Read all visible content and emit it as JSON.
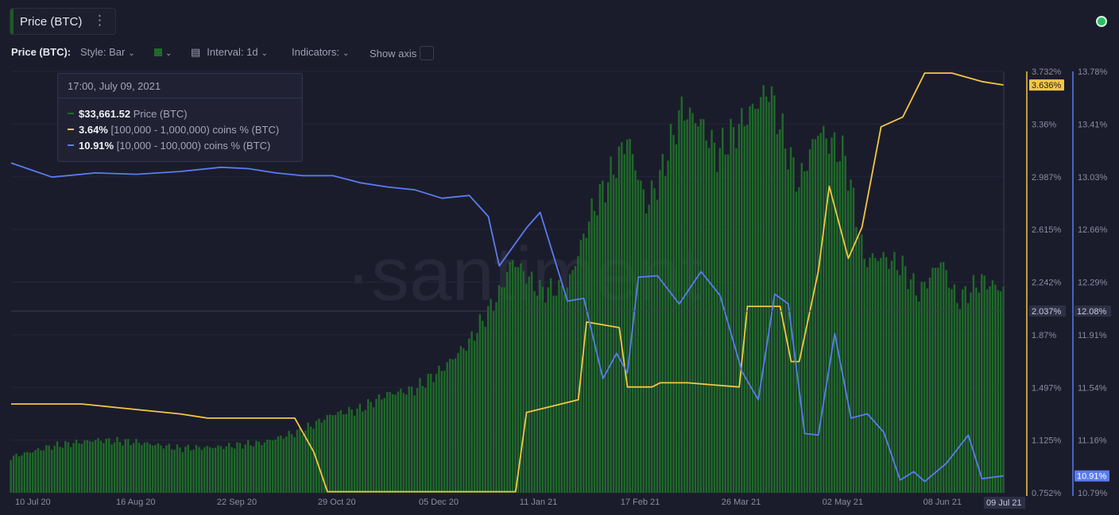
{
  "header": {
    "title": "Price (BTC)",
    "menu_icon": "⋮"
  },
  "toolbar": {
    "label": "Price (BTC):",
    "style": "Style: Bar",
    "interval": "Interval: 1d",
    "indicators": "Indicators:",
    "show_axis": "Show axis",
    "color": "#1f6a2a"
  },
  "watermark": "·santiment",
  "tooltip": {
    "date": "17:00, July 09, 2021",
    "rows": [
      {
        "value": "$33,661.52",
        "label": "Price (BTC)",
        "color": "#1f6a2a"
      },
      {
        "value": "3.64%",
        "label": "[100,000  - 1,000,000) coins % (BTC)",
        "color": "#f3c744"
      },
      {
        "value": "10.91%",
        "label": "[10,000 - 100,000) coins % (BTC)",
        "color": "#5a7cf0"
      }
    ]
  },
  "chart_data": {
    "type": "bar",
    "x_tick_labels": [
      "10 Jul 20",
      "16 Aug 20",
      "22 Sep 20",
      "29 Oct 20",
      "05 Dec 20",
      "11 Jan 21",
      "17 Feb 21",
      "26 Mar 21",
      "02 May 21",
      "08 Jun 21",
      "09 Jul 21"
    ],
    "x_range": [
      "10 Jul 20",
      "09 Jul 21"
    ],
    "crosshair_x_label": "09 Jul 21",
    "left_axis": {
      "ticks": [
        "3.732%",
        "3.36%",
        "2.987%",
        "2.615%",
        "2.242%",
        "1.87%",
        "1.497%",
        "1.125%",
        "0.752%"
      ],
      "range": [
        0.752,
        3.732
      ],
      "badge": "3.636%",
      "crosshair": "2.037%"
    },
    "right_axis": {
      "ticks": [
        "13.78%",
        "13.41%",
        "13.03%",
        "12.66%",
        "12.29%",
        "11.91%",
        "11.54%",
        "11.16%",
        "10.79%"
      ],
      "range": [
        10.79,
        13.78
      ],
      "badge": "10.91%",
      "crosshair": "12.08%"
    },
    "series": [
      {
        "name": "Price (BTC)",
        "type": "bar",
        "color": "#1f6a2a",
        "unit": "USD",
        "x": [
          "10 Jul 20",
          "25 Jul 20",
          "10 Aug 20",
          "25 Aug 20",
          "10 Sep 20",
          "25 Sep 20",
          "10 Oct 20",
          "25 Oct 20",
          "05 Nov 20",
          "15 Nov 20",
          "25 Nov 20",
          "05 Dec 20",
          "15 Dec 20",
          "25 Dec 20",
          "05 Jan 21",
          "10 Jan 21",
          "20 Jan 21",
          "30 Jan 21",
          "08 Feb 21",
          "17 Feb 21",
          "21 Feb 21",
          "28 Feb 21",
          "05 Mar 21",
          "13 Mar 21",
          "20 Mar 21",
          "26 Mar 21",
          "05 Apr 21",
          "14 Apr 21",
          "20 Apr 21",
          "25 Apr 21",
          "02 May 21",
          "12 May 21",
          "19 May 21",
          "25 May 21",
          "02 Jun 21",
          "08 Jun 21",
          "16 Jun 21",
          "22 Jun 21",
          "01 Jul 21",
          "09 Jul 21"
        ],
        "values": [
          9200,
          10800,
          11700,
          11400,
          10500,
          10700,
          11300,
          13100,
          15500,
          16200,
          18400,
          19100,
          22000,
          26000,
          33000,
          38000,
          33500,
          34000,
          45000,
          52000,
          56000,
          46000,
          50000,
          60000,
          58000,
          53500,
          58500,
          63000,
          55000,
          49000,
          57000,
          53000,
          38000,
          38500,
          37000,
          33000,
          38000,
          32000,
          35000,
          33661.52
        ]
      },
      {
        "name": "[100,000  - 1,000,000) coins % (BTC)",
        "type": "line",
        "color": "#f3c744",
        "axis": "left",
        "x": [
          "10 Jul 20",
          "05 Aug 20",
          "20 Aug 20",
          "10 Sep 20",
          "20 Sep 20",
          "22 Oct 20",
          "29 Oct 20",
          "03 Nov 20",
          "11 Jan 21",
          "15 Jan 21",
          "03 Feb 21",
          "06 Feb 21",
          "18 Feb 21",
          "21 Feb 21",
          "02 Mar 21",
          "05 Mar 21",
          "15 Mar 21",
          "03 Apr 21",
          "06 Apr 21",
          "18 Apr 21",
          "22 Apr 21",
          "25 Apr 21",
          "02 May 21",
          "06 May 21",
          "13 May 21",
          "18 May 21",
          "25 May 21",
          "02 Jun 21",
          "10 Jun 21",
          "20 Jun 21",
          "01 Jul 21",
          "09 Jul 21"
        ],
        "values": [
          1.38,
          1.38,
          1.35,
          1.31,
          1.28,
          1.28,
          1.04,
          0.76,
          0.76,
          1.32,
          1.41,
          1.96,
          1.92,
          1.5,
          1.5,
          1.53,
          1.53,
          1.5,
          2.07,
          2.07,
          1.68,
          1.68,
          2.32,
          2.92,
          2.41,
          2.63,
          3.34,
          3.41,
          3.72,
          3.72,
          3.66,
          3.636
        ]
      },
      {
        "name": "[10,000 - 100,000) coins % (BTC)",
        "type": "line",
        "color": "#5a7cf0",
        "axis": "right",
        "x": [
          "10 Jul 20",
          "25 Jul 20",
          "10 Aug 20",
          "25 Aug 20",
          "10 Sep 20",
          "25 Sep 20",
          "05 Oct 20",
          "15 Oct 20",
          "25 Oct 20",
          "05 Nov 20",
          "15 Nov 20",
          "25 Nov 20",
          "05 Dec 20",
          "15 Dec 20",
          "25 Dec 20",
          "01 Jan 21",
          "05 Jan 21",
          "15 Jan 21",
          "20 Jan 21",
          "30 Jan 21",
          "05 Feb 21",
          "12 Feb 21",
          "17 Feb 21",
          "21 Feb 21",
          "25 Feb 21",
          "04 Mar 21",
          "12 Mar 21",
          "20 Mar 21",
          "27 Mar 21",
          "04 Apr 21",
          "10 Apr 21",
          "16 Apr 21",
          "21 Apr 21",
          "27 Apr 21",
          "02 May 21",
          "08 May 21",
          "14 May 21",
          "20 May 21",
          "26 May 21",
          "01 Jun 21",
          "06 Jun 21",
          "10 Jun 21",
          "18 Jun 21",
          "26 Jun 21",
          "01 Jul 21",
          "09 Jul 21"
        ],
        "values": [
          13.13,
          13.03,
          13.06,
          13.05,
          13.07,
          13.1,
          13.09,
          13.06,
          13.04,
          13.04,
          12.99,
          12.96,
          12.94,
          12.88,
          12.9,
          12.75,
          12.4,
          12.67,
          12.78,
          12.15,
          12.17,
          11.6,
          11.78,
          11.64,
          12.32,
          12.33,
          12.13,
          12.36,
          12.19,
          11.65,
          11.45,
          12.2,
          12.13,
          11.21,
          11.2,
          11.92,
          11.32,
          11.35,
          11.22,
          10.88,
          10.94,
          10.87,
          11.0,
          11.2,
          10.89,
          10.91
        ]
      }
    ]
  }
}
